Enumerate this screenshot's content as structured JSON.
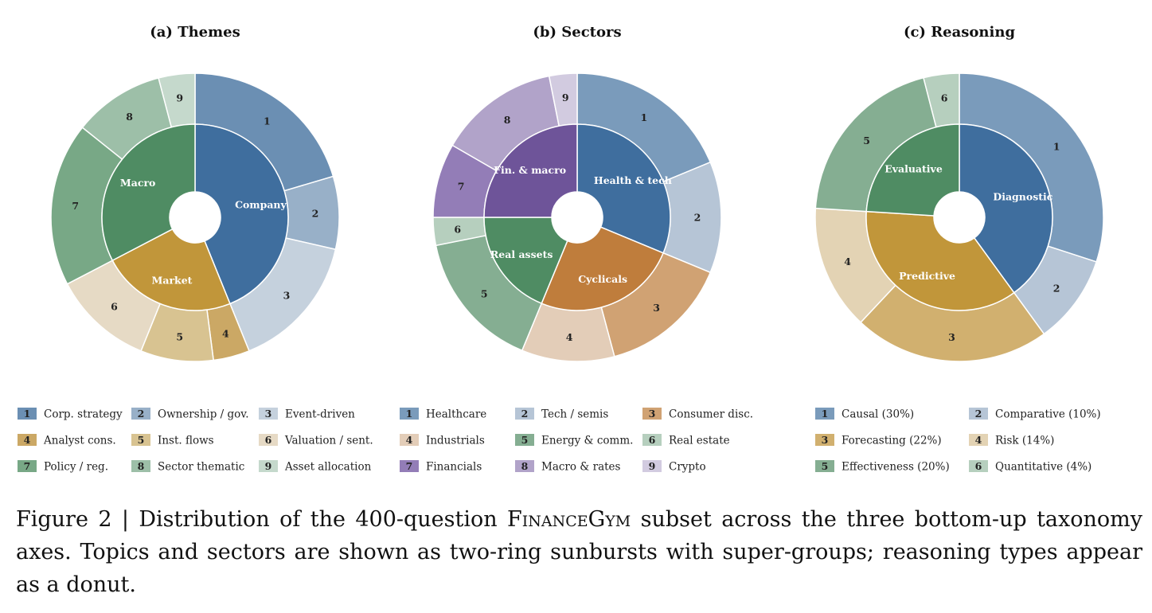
{
  "caption": {
    "prefix": "Figure 2 | Distribution of the 400-question ",
    "name": "FinanceGym",
    "suffix": " subset across the three bottom-up taxonomy axes. Topics and sectors are shown as two-ring sunbursts with super-groups; reasoning types appear as a donut."
  },
  "chart_data": [
    {
      "type": "sunburst",
      "title": "(a) Themes",
      "segments": [
        {
          "id": "1",
          "label": "Corp. strategy",
          "value": 20,
          "color": "#6b8fb3"
        },
        {
          "id": "2",
          "label": "Ownership / gov.",
          "value": 8,
          "color": "#98b0c8"
        },
        {
          "id": "3",
          "label": "Event-driven",
          "value": 15,
          "color": "#c5d1dd"
        },
        {
          "id": "4",
          "label": "Analyst cons.",
          "value": 4,
          "color": "#cba865"
        },
        {
          "id": "5",
          "label": "Inst. flows",
          "value": 8,
          "color": "#d8c391"
        },
        {
          "id": "6",
          "label": "Valuation / sent.",
          "value": 11,
          "color": "#e6dac5"
        },
        {
          "id": "7",
          "label": "Policy / reg.",
          "value": 18,
          "color": "#78a886"
        },
        {
          "id": "8",
          "label": "Sector thematic",
          "value": 10,
          "color": "#9dbfa8"
        },
        {
          "id": "9",
          "label": "Asset allocation",
          "value": 4,
          "color": "#c5d9cc"
        }
      ],
      "groups": [
        {
          "label": "Company",
          "members": 3,
          "color": "#3f6e9e"
        },
        {
          "label": "Market",
          "members": 3,
          "color": "#c1963a"
        },
        {
          "label": "Macro",
          "members": 3,
          "color": "#4f8c63"
        }
      ]
    },
    {
      "type": "sunburst",
      "title": "(b) Sectors",
      "segments": [
        {
          "id": "1",
          "label": "Healthcare",
          "value": 18,
          "color": "#7a9bbb"
        },
        {
          "id": "2",
          "label": "Tech / semis",
          "value": 12,
          "color": "#b6c5d6"
        },
        {
          "id": "3",
          "label": "Consumer disc.",
          "value": 14,
          "color": "#d0a273"
        },
        {
          "id": "4",
          "label": "Industrials",
          "value": 10,
          "color": "#e3cdb8"
        },
        {
          "id": "5",
          "label": "Energy & comm.",
          "value": 15,
          "color": "#85ae92"
        },
        {
          "id": "6",
          "label": "Real estate",
          "value": 3,
          "color": "#b6cfbe"
        },
        {
          "id": "7",
          "label": "Financials",
          "value": 8,
          "color": "#937db7"
        },
        {
          "id": "8",
          "label": "Macro & rates",
          "value": 13,
          "color": "#b1a3c9"
        },
        {
          "id": "9",
          "label": "Crypto",
          "value": 3,
          "color": "#d2cbe0"
        }
      ],
      "groups": [
        {
          "label": "Health & tech",
          "members": 2,
          "color": "#3f6e9e"
        },
        {
          "label": "Cyclicals",
          "members": 2,
          "color": "#bf7d3c"
        },
        {
          "label": "Real assets",
          "members": 2,
          "color": "#4f8c63"
        },
        {
          "label": "Fin. & macro",
          "members": 3,
          "color": "#6e5499"
        }
      ]
    },
    {
      "type": "sunburst",
      "title": "(c) Reasoning",
      "segments": [
        {
          "id": "1",
          "label": "Causal (30%)",
          "value": 30,
          "color": "#7a9bbb"
        },
        {
          "id": "2",
          "label": "Comparative (10%)",
          "value": 10,
          "color": "#b6c5d6"
        },
        {
          "id": "3",
          "label": "Forecasting (22%)",
          "value": 22,
          "color": "#d1b06f"
        },
        {
          "id": "4",
          "label": "Risk (14%)",
          "value": 14,
          "color": "#e3d3b4"
        },
        {
          "id": "5",
          "label": "Effectiveness (20%)",
          "value": 20,
          "color": "#85ae92"
        },
        {
          "id": "6",
          "label": "Quantitative (4%)",
          "value": 4,
          "color": "#b6cfbe"
        }
      ],
      "groups": [
        {
          "label": "Diagnostic",
          "members": 2,
          "color": "#3f6e9e"
        },
        {
          "label": "Predictive",
          "members": 2,
          "color": "#c1963a"
        },
        {
          "label": "Evaluative",
          "members": 2,
          "color": "#4f8c63"
        }
      ]
    }
  ]
}
